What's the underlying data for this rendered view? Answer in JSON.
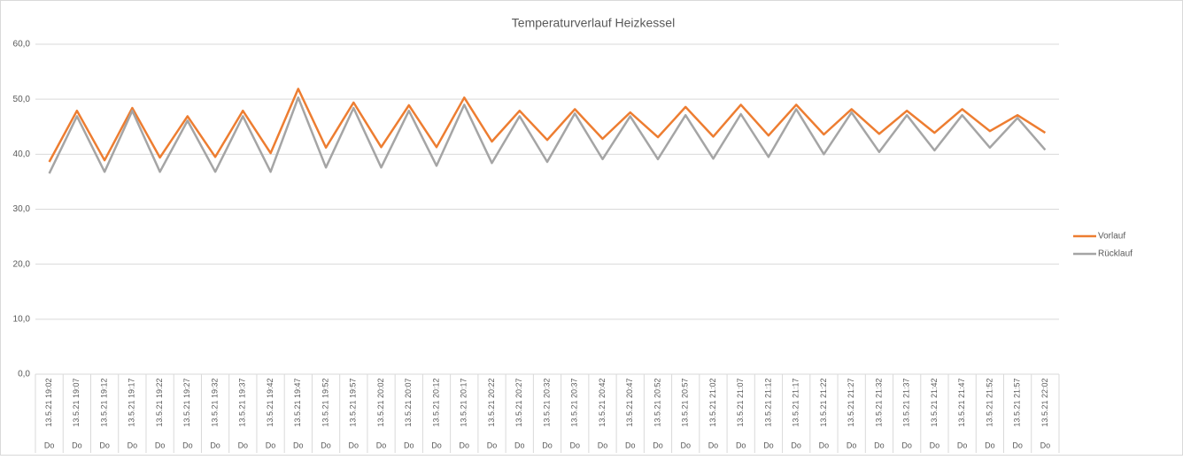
{
  "chart_data": {
    "type": "line",
    "title": "Temperaturverlauf Heizkessel",
    "categories": [
      "13.5.21 19:02",
      "13.5.21 19:07",
      "13.5.21 19:12",
      "13.5.21 19:17",
      "13.5.21 19:22",
      "13.5.21 19:27",
      "13.5.21 19:32",
      "13.5.21 19:37",
      "13.5.21 19:42",
      "13.5.21 19:47",
      "13.5.21 19:52",
      "13.5.21 19:57",
      "13.5.21 20:02",
      "13.5.21 20:07",
      "13.5.21 20:12",
      "13.5.21 20:17",
      "13.5.21 20:22",
      "13.5.21 20:27",
      "13.5.21 20:32",
      "13.5.21 20:37",
      "13.5.21 20:42",
      "13.5.21 20:47",
      "13.5.21 20:52",
      "13.5.21 20:57",
      "13.5.21 21:02",
      "13.5.21 21:07",
      "13.5.21 21:12",
      "13.5.21 21:17",
      "13.5.21 21:22",
      "13.5.21 21:27",
      "13.5.21 21:32",
      "13.5.21 21:37",
      "13.5.21 21:42",
      "13.5.21 21:47",
      "13.5.21 21:52",
      "13.5.21 21:57",
      "13.5.21 22:02"
    ],
    "category_days": [
      "Do",
      "Do",
      "Do",
      "Do",
      "Do",
      "Do",
      "Do",
      "Do",
      "Do",
      "Do",
      "Do",
      "Do",
      "Do",
      "Do",
      "Do",
      "Do",
      "Do",
      "Do",
      "Do",
      "Do",
      "Do",
      "Do",
      "Do",
      "Do",
      "Do",
      "Do",
      "Do",
      "Do",
      "Do",
      "Do",
      "Do",
      "Do",
      "Do",
      "Do",
      "Do",
      "Do",
      "Do"
    ],
    "series": [
      {
        "name": "Vorlauf",
        "color": "#ed7d31",
        "values": [
          38.6,
          47.9,
          38.9,
          48.4,
          39.4,
          46.9,
          39.5,
          47.9,
          40.2,
          51.9,
          41.2,
          49.4,
          41.3,
          48.9,
          41.3,
          50.3,
          42.3,
          47.9,
          42.6,
          48.2,
          42.8,
          47.6,
          43.1,
          48.6,
          43.2,
          49.0,
          43.4,
          49.0,
          43.6,
          48.2,
          43.7,
          47.9,
          43.9,
          48.2,
          44.2,
          47.1,
          43.9
        ]
      },
      {
        "name": "Rücklauf",
        "color": "#a5a5a5",
        "values": [
          36.5,
          46.9,
          36.8,
          47.9,
          36.8,
          46.1,
          36.8,
          46.9,
          36.8,
          50.3,
          37.6,
          48.4,
          37.6,
          47.9,
          37.9,
          49.0,
          38.4,
          46.9,
          38.6,
          47.4,
          39.1,
          46.9,
          39.1,
          47.1,
          39.2,
          47.3,
          39.5,
          48.2,
          40.0,
          47.6,
          40.4,
          47.1,
          40.7,
          47.1,
          41.2,
          46.6,
          40.8
        ]
      }
    ],
    "ylim": [
      0,
      60
    ],
    "yticks": [
      {
        "value": 0,
        "label": "0,0"
      },
      {
        "value": 10,
        "label": "10,0"
      },
      {
        "value": 20,
        "label": "20,0"
      },
      {
        "value": 30,
        "label": "30,0"
      },
      {
        "value": 40,
        "label": "40,0"
      },
      {
        "value": 50,
        "label": "50,0"
      },
      {
        "value": 60,
        "label": "60,0"
      }
    ],
    "grid": true,
    "legend": "right"
  }
}
